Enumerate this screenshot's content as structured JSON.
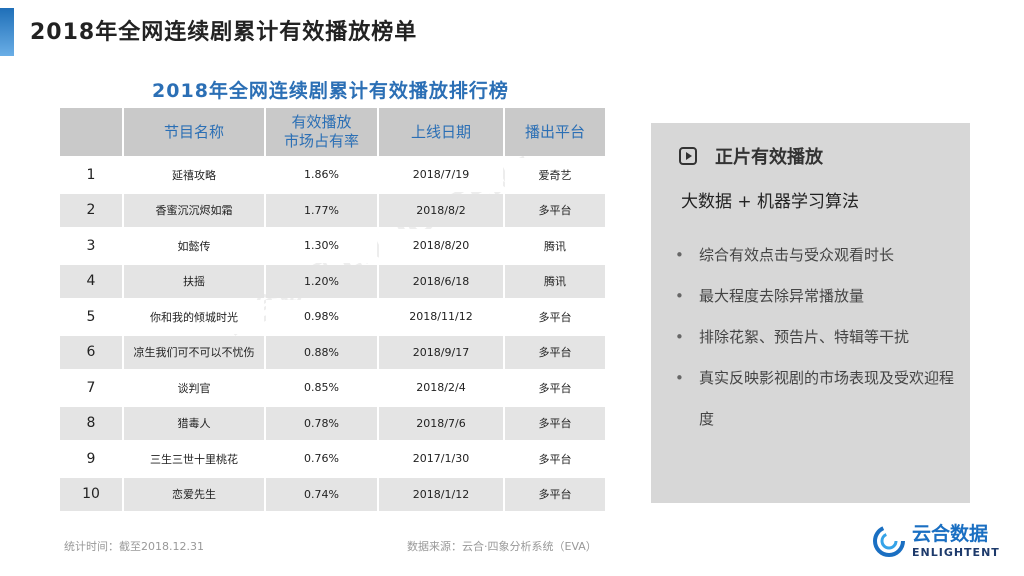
{
  "slide": {
    "title": "2018年全网连续剧累计有效播放榜单"
  },
  "table": {
    "caption": "2018年全网连续剧累计有效播放排行榜",
    "headers": [
      "",
      "节目名称",
      "有效播放\n市场占有率",
      "上线日期",
      "播出平台"
    ],
    "rows": [
      {
        "rank": "1",
        "title": "延禧攻略",
        "share": "1.86%",
        "date": "2018/7/19",
        "platform": "爱奇艺"
      },
      {
        "rank": "2",
        "title": "香蜜沉沉烬如霜",
        "share": "1.77%",
        "date": "2018/8/2",
        "platform": "多平台"
      },
      {
        "rank": "3",
        "title": "如懿传",
        "share": "1.30%",
        "date": "2018/8/20",
        "platform": "腾讯"
      },
      {
        "rank": "4",
        "title": "扶摇",
        "share": "1.20%",
        "date": "2018/6/18",
        "platform": "腾讯"
      },
      {
        "rank": "5",
        "title": "你和我的倾城时光",
        "share": "0.98%",
        "date": "2018/11/12",
        "platform": "多平台"
      },
      {
        "rank": "6",
        "title": "凉生我们可不可以不忧伤",
        "share": "0.88%",
        "date": "2018/9/17",
        "platform": "多平台"
      },
      {
        "rank": "7",
        "title": "谈判官",
        "share": "0.85%",
        "date": "2018/2/4",
        "platform": "多平台"
      },
      {
        "rank": "8",
        "title": "猎毒人",
        "share": "0.78%",
        "date": "2018/7/6",
        "platform": "多平台"
      },
      {
        "rank": "9",
        "title": "三生三世十里桃花",
        "share": "0.76%",
        "date": "2017/1/30",
        "platform": "多平台"
      },
      {
        "rank": "10",
        "title": "恋爱先生",
        "share": "0.74%",
        "date": "2018/1/12",
        "platform": "多平台"
      }
    ]
  },
  "footnotes": {
    "stat_time": "统计时间：截至2018.12.31",
    "source": "数据来源：云合·四象分析系统（EVA）"
  },
  "panel": {
    "title": "正片有效播放",
    "icon": "play-icon",
    "subtitle": "大数据 + 机器学习算法",
    "bullets": [
      "综合有效点击与受众观看时长",
      "最大程度去除异常播放量",
      "排除花絮、预告片、特辑等干扰",
      "真实反映影视剧的市场表现及受欢迎程度"
    ]
  },
  "watermark": "云合数据 ENLIGHTENT",
  "logo": {
    "cn": "云合数据",
    "en": "ENLIGHTENT"
  },
  "colors": {
    "accent": "#2b6fb5",
    "header_bg": "#c9c9c9",
    "stripe": "#e4e4e4",
    "panel_bg": "#d7d7d7"
  }
}
